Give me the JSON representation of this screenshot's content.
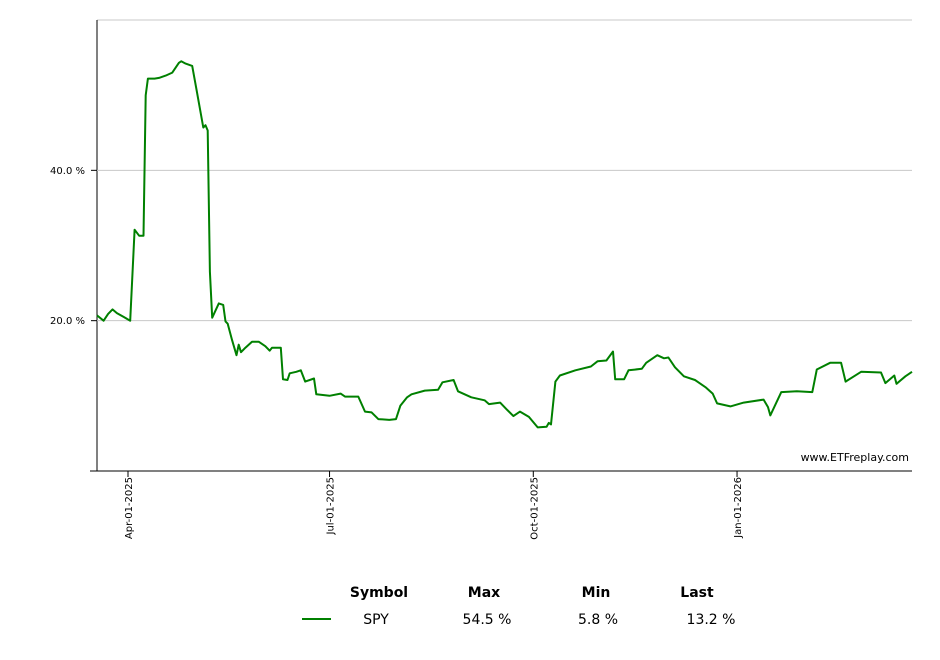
{
  "chart_data": {
    "type": "line",
    "annotation": "www.ETFreplay.com",
    "x": [
      "2025-03-18",
      "2025-03-21",
      "2025-03-23",
      "2025-03-25",
      "2025-03-27",
      "2025-03-30",
      "2025-04-02",
      "2025-04-04",
      "2025-04-06",
      "2025-04-08",
      "2025-04-09",
      "2025-04-10",
      "2025-04-13",
      "2025-04-15",
      "2025-04-18",
      "2025-04-21",
      "2025-04-24",
      "2025-04-25",
      "2025-04-27",
      "2025-04-30",
      "2025-05-02",
      "2025-05-05",
      "2025-05-06",
      "2025-05-07",
      "2025-05-08",
      "2025-05-09",
      "2025-05-12",
      "2025-05-14",
      "2025-05-15",
      "2025-05-16",
      "2025-05-18",
      "2025-05-20",
      "2025-05-21",
      "2025-05-22",
      "2025-05-24",
      "2025-05-27",
      "2025-05-30",
      "2025-06-02",
      "2025-06-04",
      "2025-06-05",
      "2025-06-09",
      "2025-06-10",
      "2025-06-12",
      "2025-06-13",
      "2025-06-16",
      "2025-06-18",
      "2025-06-20",
      "2025-06-24",
      "2025-06-25",
      "2025-07-01",
      "2025-07-06",
      "2025-07-08",
      "2025-07-14",
      "2025-07-17",
      "2025-07-20",
      "2025-07-23",
      "2025-07-28",
      "2025-07-31",
      "2025-08-02",
      "2025-08-05",
      "2025-08-07",
      "2025-08-13",
      "2025-08-19",
      "2025-08-21",
      "2025-08-26",
      "2025-08-28",
      "2025-09-03",
      "2025-09-09",
      "2025-09-11",
      "2025-09-16",
      "2025-09-19",
      "2025-09-22",
      "2025-09-25",
      "2025-09-29",
      "2025-10-03",
      "2025-10-07",
      "2025-10-08",
      "2025-10-09",
      "2025-10-11",
      "2025-10-13",
      "2025-10-20",
      "2025-10-27",
      "2025-10-30",
      "2025-11-03",
      "2025-11-06",
      "2025-11-07",
      "2025-11-11",
      "2025-11-13",
      "2025-11-19",
      "2025-11-21",
      "2025-11-26",
      "2025-11-29",
      "2025-12-01",
      "2025-12-04",
      "2025-12-08",
      "2025-12-13",
      "2025-12-18",
      "2025-12-21",
      "2025-12-23",
      "2025-12-29",
      "2026-01-04",
      "2026-01-13",
      "2026-01-15",
      "2026-01-16",
      "2026-01-21",
      "2026-01-28",
      "2026-02-04",
      "2026-02-06",
      "2026-02-12",
      "2026-02-17",
      "2026-02-19",
      "2026-02-26",
      "2026-03-07",
      "2026-03-09",
      "2026-03-13",
      "2026-03-14",
      "2026-03-18",
      "2026-03-21"
    ],
    "series": [
      {
        "name": "SPY",
        "color": "#008000",
        "values": [
          20.7,
          20.0,
          20.9,
          21.5,
          21.0,
          20.5,
          20.0,
          32.1,
          31.3,
          31.3,
          50.0,
          52.2,
          52.2,
          52.3,
          52.6,
          53.0,
          54.3,
          54.5,
          54.2,
          53.9,
          50.6,
          45.7,
          46.0,
          45.3,
          26.5,
          20.4,
          22.3,
          22.1,
          19.9,
          19.6,
          17.4,
          15.4,
          16.8,
          15.8,
          16.4,
          17.2,
          17.2,
          16.6,
          16.0,
          16.4,
          16.4,
          12.2,
          12.1,
          13.0,
          13.2,
          13.4,
          11.9,
          12.3,
          10.2,
          10.0,
          10.3,
          9.9,
          9.9,
          7.9,
          7.8,
          6.9,
          6.8,
          6.9,
          8.7,
          9.8,
          10.2,
          10.7,
          10.8,
          11.8,
          12.1,
          10.6,
          9.8,
          9.4,
          8.9,
          9.1,
          8.2,
          7.3,
          7.9,
          7.2,
          5.8,
          5.9,
          6.4,
          6.2,
          11.9,
          12.7,
          13.4,
          13.9,
          14.6,
          14.7,
          15.9,
          12.2,
          12.2,
          13.4,
          13.6,
          14.4,
          15.4,
          15.0,
          15.1,
          13.8,
          12.6,
          12.1,
          11.1,
          10.3,
          9.0,
          8.6,
          9.1,
          9.5,
          8.5,
          7.4,
          10.5,
          10.6,
          10.5,
          13.5,
          14.4,
          14.4,
          11.9,
          13.2,
          13.1,
          11.7,
          12.7,
          11.6,
          12.6,
          13.2
        ]
      }
    ],
    "xlim": [
      "2025-03-18",
      "2026-03-21"
    ],
    "xticks": [
      {
        "value": "2025-04-01",
        "label": "Apr-01-2025"
      },
      {
        "value": "2025-07-01",
        "label": "Jul-01-2025"
      },
      {
        "value": "2025-10-01",
        "label": "Oct-01-2025"
      },
      {
        "value": "2026-01-01",
        "label": "Jan-01-2026"
      }
    ],
    "ylim": [
      0,
      60
    ],
    "yticks": [
      {
        "value": 20,
        "label": "20.0 %"
      },
      {
        "value": 40,
        "label": "40.0 %"
      }
    ],
    "grid": true
  },
  "legend_table": {
    "headers": [
      "Symbol",
      "Max",
      "Min",
      "Last"
    ],
    "row": [
      "54.5 %",
      "5.8 %",
      "13.2 %"
    ]
  }
}
